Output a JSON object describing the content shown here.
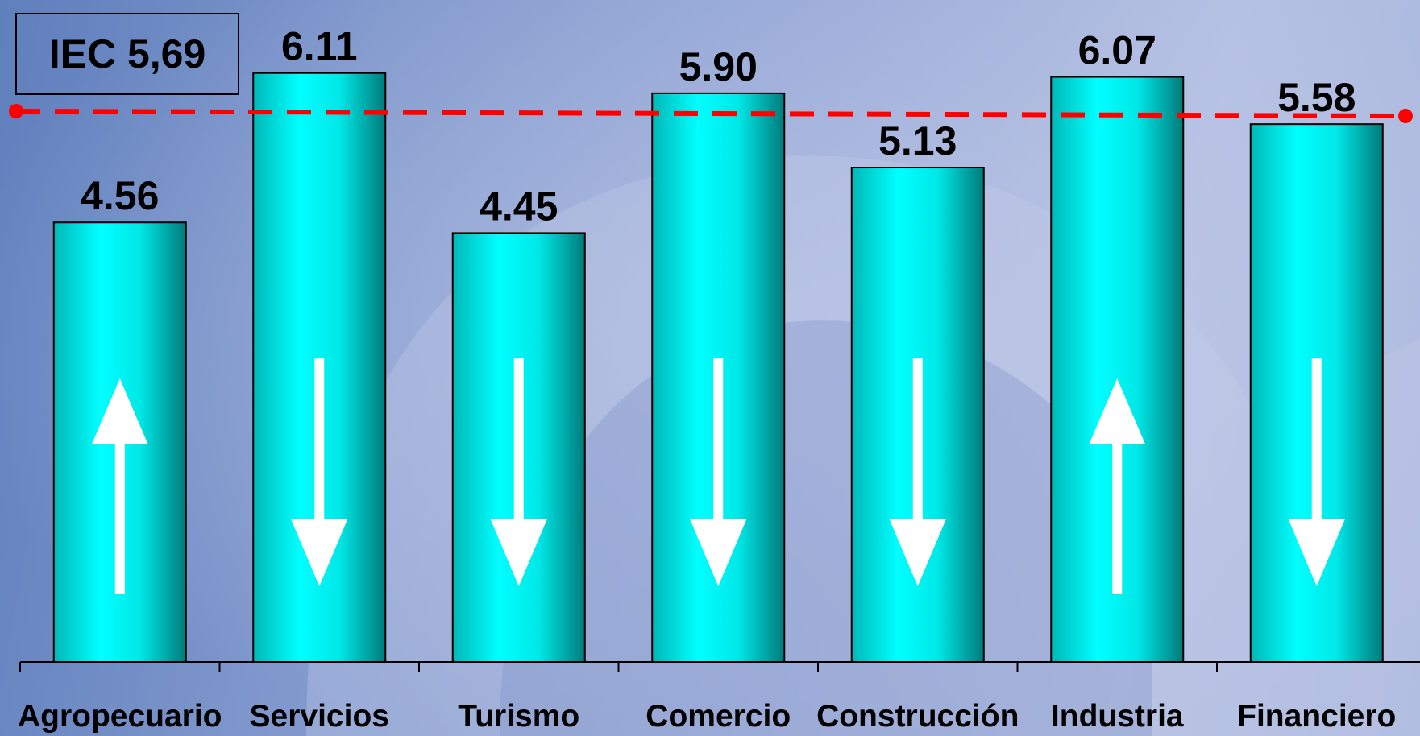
{
  "chart_data": {
    "type": "bar",
    "categories": [
      "Agropecuario",
      "Servicios",
      "Turismo",
      "Comercio",
      "Construcción",
      "Industria",
      "Financiero"
    ],
    "values": [
      4.56,
      6.11,
      4.45,
      5.9,
      5.13,
      6.07,
      5.58
    ],
    "value_labels": [
      "4.56",
      "6.11",
      "4.45",
      "5.90",
      "5.13",
      "6.07",
      "5.58"
    ],
    "trend_arrows": [
      "up-arrow-icon",
      "down-arrow-icon",
      "down-arrow-icon",
      "down-arrow-icon",
      "down-arrow-icon",
      "up-arrow-icon",
      "down-arrow-icon"
    ],
    "reference_line": {
      "value": 5.69,
      "label": "IEC 5,69",
      "color": "#ff0000",
      "style": "dashed"
    },
    "ylim": [
      0,
      6.3
    ],
    "grid": false,
    "legend": "none",
    "bar_color": "#00e0e0",
    "title": "",
    "xlabel": "",
    "ylabel": ""
  },
  "colors": {
    "bar_light": "#00ffff",
    "bar_dark": "#008080",
    "reference_line": "#ff0000",
    "arrow": "#ffffff"
  }
}
